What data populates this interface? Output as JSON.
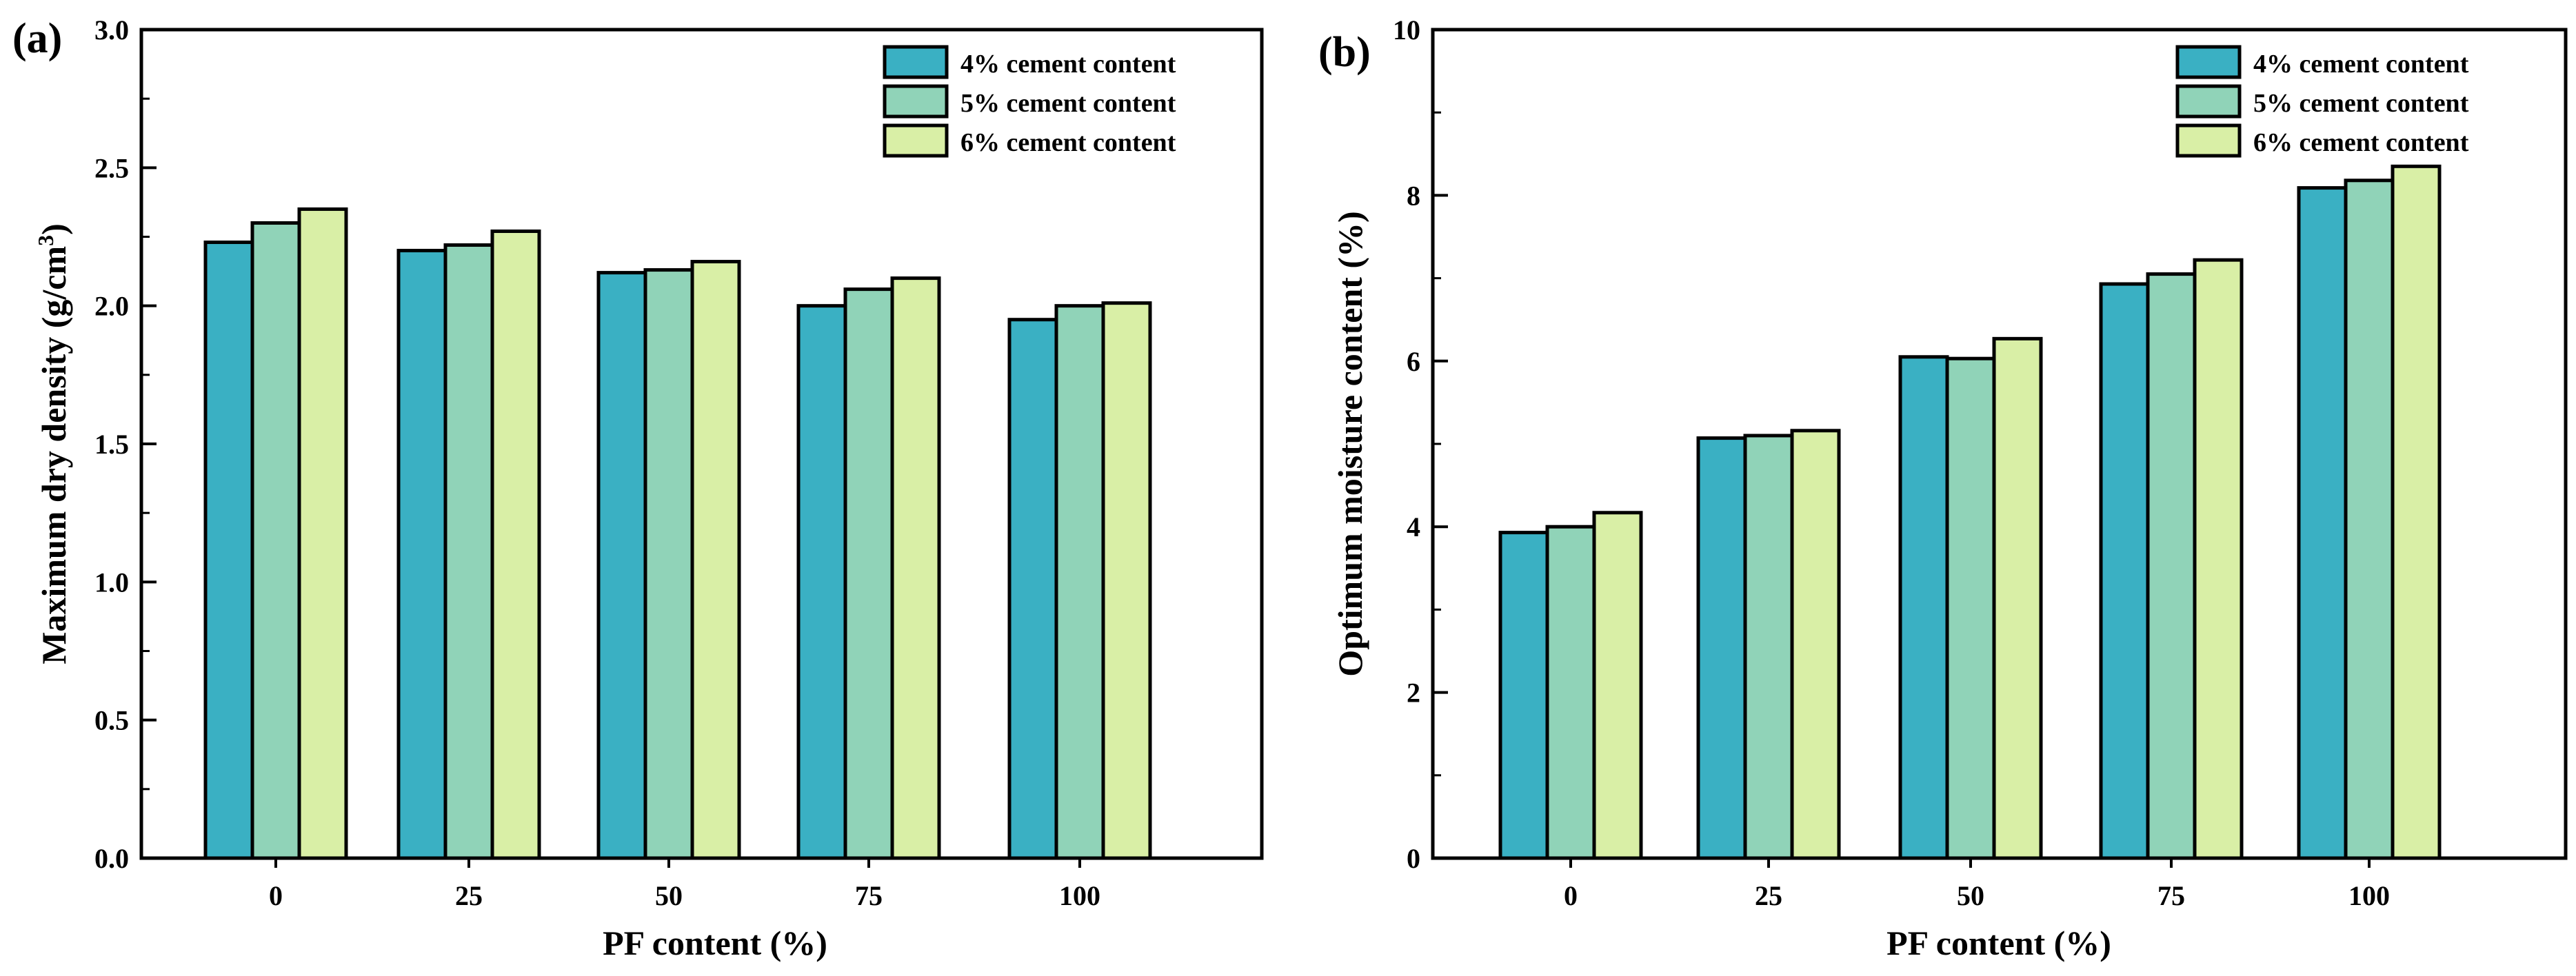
{
  "colors": {
    "series": [
      "#3ab0c3",
      "#90d3b8",
      "#d9efa6"
    ],
    "axis": "#000000",
    "background": "#ffffff"
  },
  "chart_data": [
    {
      "panel_label": "(a)",
      "type": "bar",
      "categories": [
        "0",
        "25",
        "50",
        "75",
        "100"
      ],
      "series": [
        {
          "name": "4% cement content",
          "values": [
            2.23,
            2.2,
            2.12,
            2.0,
            1.95
          ]
        },
        {
          "name": "5% cement content",
          "values": [
            2.3,
            2.22,
            2.13,
            2.06,
            2.0
          ]
        },
        {
          "name": "6% cement content",
          "values": [
            2.35,
            2.27,
            2.16,
            2.1,
            2.01
          ]
        }
      ],
      "xlabel": "PF content (%)",
      "ylabel": "Maximum dry density (g/cm",
      "ylabel_sup": "3",
      "ylabel_close": ")",
      "ylim": [
        0,
        3.0
      ],
      "yticks": [
        "0.0",
        "0.5",
        "1.0",
        "1.5",
        "2.0",
        "2.5",
        "3.0"
      ],
      "ytick_values": [
        0,
        0.5,
        1.0,
        1.5,
        2.0,
        2.5,
        3.0
      ],
      "minor_step": 0.25,
      "legend_position": "top-right",
      "grid": false
    },
    {
      "panel_label": "(b)",
      "type": "bar",
      "categories": [
        "0",
        "25",
        "50",
        "75",
        "100"
      ],
      "series": [
        {
          "name": "4% cement content",
          "values": [
            3.93,
            5.07,
            6.05,
            6.93,
            8.09
          ]
        },
        {
          "name": "5% cement content",
          "values": [
            4.0,
            5.1,
            6.03,
            7.05,
            8.18
          ]
        },
        {
          "name": "6% cement content",
          "values": [
            4.17,
            5.16,
            6.27,
            7.22,
            8.35
          ]
        }
      ],
      "xlabel": "PF content (%)",
      "ylabel": "Optimum moisture content (%)",
      "ylabel_sup": "",
      "ylabel_close": "",
      "ylim": [
        0,
        10
      ],
      "yticks": [
        "0",
        "2",
        "4",
        "6",
        "8",
        "10"
      ],
      "ytick_values": [
        0,
        2,
        4,
        6,
        8,
        10
      ],
      "minor_step": 1,
      "legend_position": "top-right",
      "grid": false
    }
  ]
}
